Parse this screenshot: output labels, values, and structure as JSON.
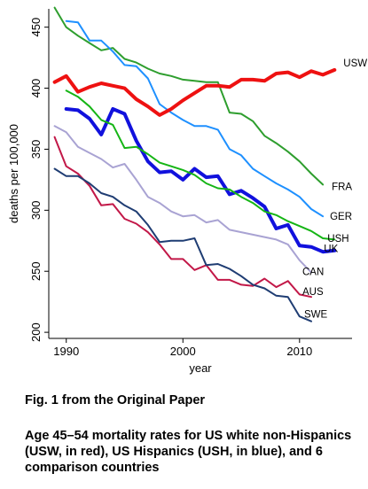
{
  "figure": {
    "title": "Fig. 1 from the Original Paper",
    "caption": "Age 45–54 mortality rates for US white non-Hispanics (USW, in red), US Hispanics (USH, in blue), and 6 comparison countries"
  },
  "chart_data": {
    "type": "line",
    "xlabel": "year",
    "ylabel": "deaths per 100,000",
    "xlim": [
      1988.5,
      2014.5
    ],
    "ylim": [
      195,
      465
    ],
    "xticks": [
      1990,
      2000,
      2010
    ],
    "yticks": [
      200,
      250,
      300,
      350,
      400,
      450
    ],
    "grid": false,
    "legend": "inline labels at line ends",
    "series": [
      {
        "name": "FRA",
        "color": "#2e9e2e",
        "width": 2,
        "x": [
          1989,
          1990,
          1991,
          1992,
          1993,
          1994,
          1995,
          1996,
          1997,
          1998,
          1999,
          2000,
          2001,
          2002,
          2003,
          2004,
          2005,
          2006,
          2007,
          2008,
          2009,
          2010,
          2011,
          2012
        ],
        "y": [
          466,
          450,
          443,
          437,
          431,
          433,
          424,
          421,
          416,
          412,
          410,
          407,
          406,
          405,
          405,
          380,
          379,
          373,
          361,
          355,
          348,
          340,
          330,
          321
        ]
      },
      {
        "name": "GER",
        "color": "#1e90ff",
        "width": 2,
        "x": [
          1990,
          1991,
          1992,
          1993,
          1994,
          1995,
          1996,
          1997,
          1998,
          1999,
          2000,
          2001,
          2002,
          2003,
          2004,
          2005,
          2006,
          2007,
          2008,
          2009,
          2010,
          2011,
          2012
        ],
        "y": [
          455,
          454,
          439,
          439,
          430,
          419,
          418,
          408,
          387,
          380,
          374,
          369,
          369,
          366,
          350,
          345,
          334,
          328,
          322,
          317,
          311,
          301,
          295
        ]
      },
      {
        "name": "USW",
        "color": "#ee1111",
        "width": 4,
        "x": [
          1989,
          1990,
          1991,
          1992,
          1993,
          1994,
          1995,
          1996,
          1997,
          1998,
          1999,
          2000,
          2001,
          2002,
          2003,
          2004,
          2005,
          2006,
          2007,
          2008,
          2009,
          2010,
          2011,
          2012,
          2013
        ],
        "y": [
          405,
          410,
          397,
          401,
          404,
          402,
          400,
          391,
          385,
          378,
          383,
          390,
          396,
          402,
          402,
          401,
          407,
          407,
          406,
          412,
          413,
          409,
          414,
          411,
          415
        ]
      },
      {
        "name": "USH",
        "color": "#1111dd",
        "width": 4,
        "x": [
          1990,
          1991,
          1992,
          1993,
          1994,
          1995,
          1996,
          1997,
          1998,
          1999,
          2000,
          2001,
          2002,
          2003,
          2004,
          2005,
          2006,
          2007,
          2008,
          2009,
          2010,
          2011,
          2012,
          2013
        ],
        "y": [
          383,
          382,
          375,
          362,
          383,
          379,
          357,
          340,
          331,
          332,
          325,
          334,
          327,
          328,
          313,
          316,
          310,
          303,
          285,
          288,
          271,
          270,
          266,
          267
        ]
      },
      {
        "name": "UK",
        "color": "#15b515",
        "width": 2,
        "x": [
          1990,
          1991,
          1992,
          1993,
          1994,
          1995,
          1996,
          1997,
          1998,
          1999,
          2000,
          2001,
          2002,
          2003,
          2004,
          2005,
          2006,
          2007,
          2008,
          2009,
          2010,
          2011,
          2012,
          2013
        ],
        "y": [
          398,
          393,
          385,
          374,
          370,
          351,
          352,
          346,
          339,
          336,
          333,
          329,
          322,
          318,
          317,
          311,
          306,
          299,
          296,
          291,
          287,
          283,
          277,
          276
        ]
      },
      {
        "name": "CAN",
        "color": "#a9a3d3",
        "width": 2,
        "x": [
          1989,
          1990,
          1991,
          1992,
          1993,
          1994,
          1995,
          1996,
          1997,
          1998,
          1999,
          2000,
          2001,
          2002,
          2003,
          2004,
          2005,
          2006,
          2007,
          2008,
          2009,
          2010,
          2011
        ],
        "y": [
          369,
          364,
          352,
          347,
          342,
          335,
          338,
          325,
          311,
          306,
          299,
          295,
          296,
          290,
          292,
          284,
          282,
          280,
          278,
          276,
          272,
          259,
          249
        ]
      },
      {
        "name": "AUS",
        "color": "#c21848",
        "width": 2,
        "x": [
          1989,
          1990,
          1991,
          1992,
          1993,
          1994,
          1995,
          1996,
          1997,
          1998,
          1999,
          2000,
          2001,
          2002,
          2003,
          2004,
          2005,
          2006,
          2007,
          2008,
          2009,
          2010,
          2011
        ],
        "y": [
          360,
          336,
          330,
          320,
          304,
          305,
          293,
          289,
          282,
          272,
          260,
          260,
          251,
          255,
          243,
          243,
          239,
          238,
          244,
          237,
          242,
          231,
          229
        ]
      },
      {
        "name": "SWE",
        "color": "#1f3d73",
        "width": 2,
        "x": [
          1989,
          1990,
          1991,
          1992,
          1993,
          1994,
          1995,
          1996,
          1997,
          1998,
          1999,
          2000,
          2001,
          2002,
          2003,
          2004,
          2005,
          2006,
          2007,
          2008,
          2009,
          2010,
          2011
        ],
        "y": [
          334,
          328,
          328,
          322,
          314,
          311,
          304,
          299,
          288,
          274,
          275,
          275,
          277,
          255,
          256,
          252,
          246,
          239,
          236,
          230,
          229,
          213,
          209
        ]
      }
    ]
  }
}
